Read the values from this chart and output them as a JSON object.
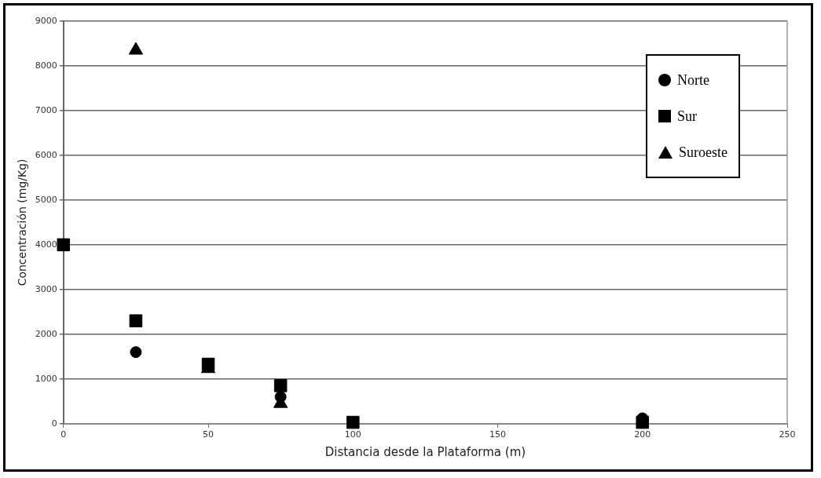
{
  "chart_data": {
    "type": "scatter",
    "xlabel": "Distancia desde la Plataforma (m)",
    "ylabel": "Concentración (mg/Kg)",
    "xlim": [
      0,
      250
    ],
    "xticks": [
      0,
      50,
      100,
      150,
      200,
      250
    ],
    "ylim": [
      0,
      9000
    ],
    "yticks": [
      0,
      1000,
      2000,
      3000,
      4000,
      5000,
      6000,
      7000,
      8000,
      9000
    ],
    "grid": "y",
    "legend": "top right",
    "series": [
      {
        "name": "Norte",
        "color": "#000000",
        "marker": "circle",
        "x": [
          25,
          75,
          200
        ],
        "values": [
          1600,
          600,
          120
        ]
      },
      {
        "name": "Sur",
        "color": "#000000",
        "marker": "square",
        "x": [
          0,
          25,
          50,
          75,
          100,
          200
        ],
        "values": [
          4000,
          2300,
          1330,
          850,
          30,
          30
        ]
      },
      {
        "name": "Suroeste",
        "color": "#000000",
        "marker": "triangle",
        "x": [
          25,
          50,
          75
        ],
        "values": [
          8350,
          1230,
          450
        ]
      }
    ]
  }
}
